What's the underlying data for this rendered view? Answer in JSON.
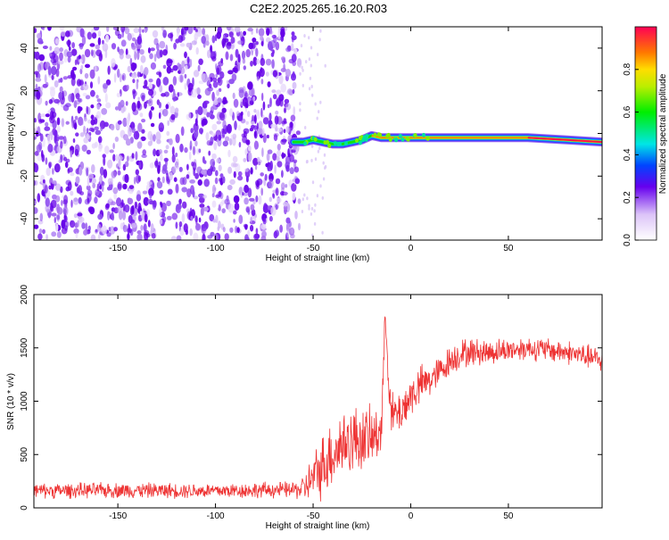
{
  "page": {
    "title": "C2E2.2025.265.16.20.R03"
  },
  "chart_data": [
    {
      "type": "heatmap",
      "xlabel": "Height of straight line (km)",
      "ylabel": "Frequency (Hz)",
      "xlim": [
        -193,
        98
      ],
      "ylim": [
        -50,
        50
      ],
      "x_ticks": [
        -150,
        -100,
        -50,
        0,
        50
      ],
      "x_tick_labels": [
        "-150",
        "-100",
        "-50",
        "0",
        "50"
      ],
      "y_ticks": [
        -40,
        -20,
        0,
        20,
        40
      ],
      "y_tick_labels": [
        "-40",
        "-20",
        "0",
        "20",
        "40"
      ],
      "noise_region_x": [
        -193,
        -57
      ],
      "signal_trace": {
        "x": [
          -60,
          -55,
          -50,
          -45,
          -40,
          -35,
          -30,
          -25,
          -20,
          -15,
          -10,
          -5,
          0,
          5,
          10,
          20,
          40,
          60,
          80,
          98
        ],
        "y": [
          -4,
          -4,
          -3,
          -4,
          -5,
          -5,
          -4,
          -3,
          -1,
          -2,
          -2,
          -2,
          -2,
          -2,
          -2,
          -2,
          -2,
          -2,
          -3,
          -4
        ],
        "peak_amplitude_x": [
          60,
          95
        ]
      },
      "colorbar": {
        "label": "Normalized spectral amplitude",
        "range": [
          0,
          1
        ],
        "ticks": [
          0.0,
          0.2,
          0.4,
          0.6,
          0.8
        ],
        "tick_labels": [
          "0.0",
          "0.2",
          "0.4",
          "0.6",
          "0.8"
        ]
      }
    },
    {
      "type": "line",
      "xlabel": "Height of straight line (km)",
      "ylabel": "SNR (10 * v/v)",
      "xlim": [
        -193,
        98
      ],
      "ylim": [
        0,
        2000
      ],
      "x_ticks": [
        -150,
        -100,
        -50,
        0,
        50
      ],
      "x_tick_labels": [
        "-150",
        "-100",
        "-50",
        "0",
        "50"
      ],
      "y_ticks": [
        0,
        500,
        1000,
        1500,
        2000
      ],
      "y_tick_labels": [
        "0",
        "500",
        "1000",
        "1500",
        "2000"
      ],
      "color": "#ee3333",
      "series": [
        {
          "name": "SNR",
          "x": [
            -193,
            -150,
            -100,
            -60,
            -55,
            -50,
            -45,
            -40,
            -35,
            -30,
            -25,
            -20,
            -15,
            -13,
            -10,
            -5,
            0,
            5,
            10,
            15,
            20,
            25,
            30,
            40,
            50,
            60,
            70,
            80,
            90,
            98
          ],
          "y": [
            160,
            165,
            160,
            170,
            180,
            280,
            400,
            520,
            600,
            640,
            650,
            640,
            760,
            1800,
            850,
            900,
            1050,
            1150,
            1200,
            1280,
            1380,
            1440,
            1460,
            1460,
            1480,
            1500,
            1480,
            1460,
            1420,
            1380
          ],
          "noise_amplitude": [
            70,
            70,
            70,
            75,
            120,
            220,
            300,
            320,
            330,
            320,
            300,
            280,
            250,
            150,
            220,
            200,
            200,
            180,
            160,
            140,
            140,
            140,
            130,
            120,
            110,
            110,
            110,
            110,
            110,
            110
          ]
        }
      ]
    }
  ]
}
